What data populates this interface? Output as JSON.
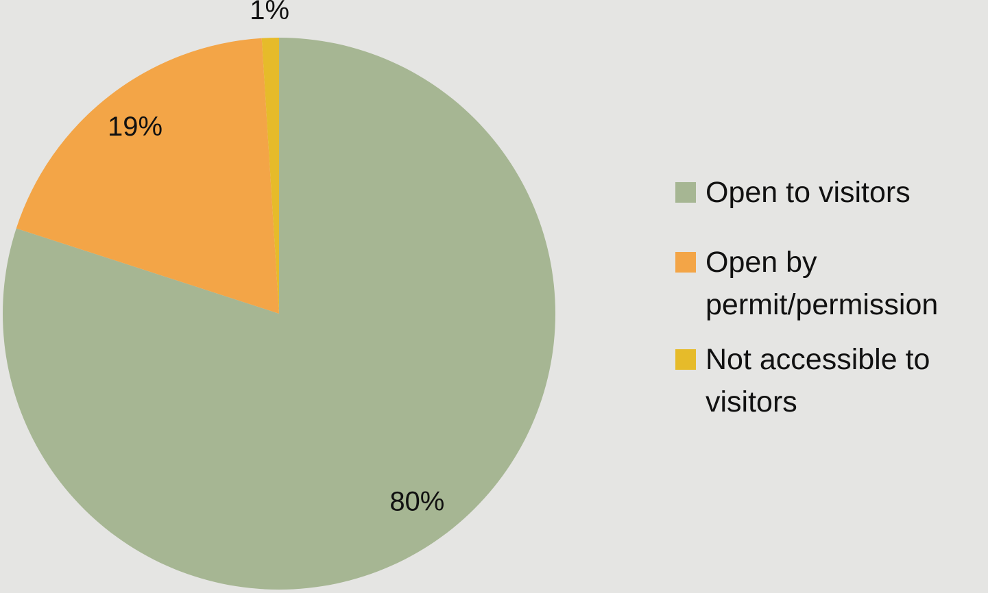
{
  "chart_data": {
    "type": "pie",
    "categories": [
      "Open to visitors",
      "Open by permit/permission",
      "Not accessible to visitors"
    ],
    "values": [
      80,
      19,
      1
    ],
    "value_labels": [
      "80%",
      "19%",
      "1%"
    ],
    "colors": [
      "#a6b693",
      "#f3a547",
      "#e6bb2a"
    ],
    "legend": "right"
  }
}
